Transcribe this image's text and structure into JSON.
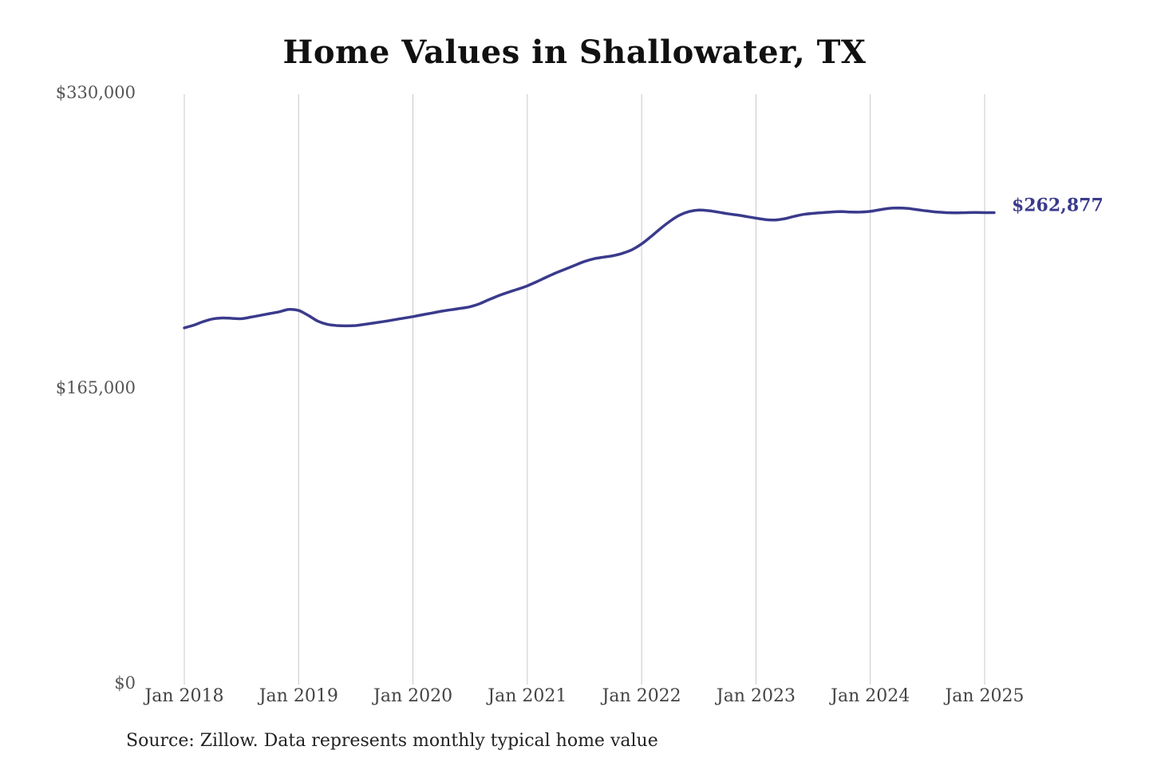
{
  "chart_data": {
    "type": "line",
    "title": "Home Values in Shallowater, TX",
    "source": "Source: Zillow. Data represents monthly typical home value",
    "xlabel": "",
    "ylabel": "",
    "ylim": [
      0,
      330000
    ],
    "y_ticks": [
      {
        "value": 0,
        "label": "$0"
      },
      {
        "value": 165000,
        "label": "$165,000"
      },
      {
        "value": 330000,
        "label": "$330,000"
      }
    ],
    "x_ticks": [
      {
        "date": "2018-01",
        "label": "Jan 2018"
      },
      {
        "date": "2019-01",
        "label": "Jan 2019"
      },
      {
        "date": "2020-01",
        "label": "Jan 2020"
      },
      {
        "date": "2021-01",
        "label": "Jan 2021"
      },
      {
        "date": "2022-01",
        "label": "Jan 2022"
      },
      {
        "date": "2023-01",
        "label": "Jan 2023"
      },
      {
        "date": "2024-01",
        "label": "Jan 2024"
      },
      {
        "date": "2025-01",
        "label": "Jan 2025"
      }
    ],
    "grid": {
      "vertical": true,
      "horizontal": false
    },
    "line_color": "#3a3a8c",
    "grid_color": "#c8c8c8",
    "end_label": "$262,877",
    "series": [
      {
        "x": [
          "2018-01",
          "2018-02",
          "2018-03",
          "2018-04",
          "2018-05",
          "2018-06",
          "2018-07",
          "2018-08",
          "2018-09",
          "2018-10",
          "2018-11",
          "2018-12",
          "2019-01",
          "2019-02",
          "2019-03",
          "2019-04",
          "2019-05",
          "2019-06",
          "2019-07",
          "2019-08",
          "2019-09",
          "2019-10",
          "2019-11",
          "2019-12",
          "2020-01",
          "2020-02",
          "2020-03",
          "2020-04",
          "2020-05",
          "2020-06",
          "2020-07",
          "2020-08",
          "2020-09",
          "2020-10",
          "2020-11",
          "2020-12",
          "2021-01",
          "2021-02",
          "2021-03",
          "2021-04",
          "2021-05",
          "2021-06",
          "2021-07",
          "2021-08",
          "2021-09",
          "2021-10",
          "2021-11",
          "2021-12",
          "2022-01",
          "2022-02",
          "2022-03",
          "2022-04",
          "2022-05",
          "2022-06",
          "2022-07",
          "2022-08",
          "2022-09",
          "2022-10",
          "2022-11",
          "2022-12",
          "2023-01",
          "2023-02",
          "2023-03",
          "2023-04",
          "2023-05",
          "2023-06",
          "2023-07",
          "2023-08",
          "2023-09",
          "2023-10",
          "2023-11",
          "2023-12",
          "2024-01",
          "2024-02",
          "2024-03",
          "2024-04",
          "2024-05",
          "2024-06",
          "2024-07",
          "2024-08",
          "2024-09",
          "2024-10",
          "2024-11",
          "2024-12",
          "2025-01",
          "2025-02"
        ],
        "y": [
          198500,
          200000,
          202000,
          203500,
          204000,
          203800,
          203600,
          204500,
          205500,
          206500,
          207500,
          208800,
          208200,
          205500,
          202300,
          200500,
          199800,
          199600,
          199800,
          200500,
          201300,
          202100,
          203000,
          203900,
          204800,
          205800,
          206800,
          207800,
          208600,
          209400,
          210300,
          212000,
          214300,
          216500,
          218400,
          220100,
          222000,
          224300,
          226800,
          229200,
          231300,
          233500,
          235600,
          237100,
          238000,
          238800,
          240200,
          242200,
          245400,
          249600,
          254100,
          258200,
          261500,
          263500,
          264300,
          264000,
          263200,
          262300,
          261600,
          260700,
          259800,
          259000,
          258800,
          259500,
          260800,
          261900,
          262500,
          262900,
          263300,
          263500,
          263200,
          263200,
          263600,
          264500,
          265300,
          265500,
          265200,
          264500,
          263800,
          263200,
          262900,
          262800,
          262900,
          263000,
          262900,
          262877
        ]
      }
    ]
  }
}
